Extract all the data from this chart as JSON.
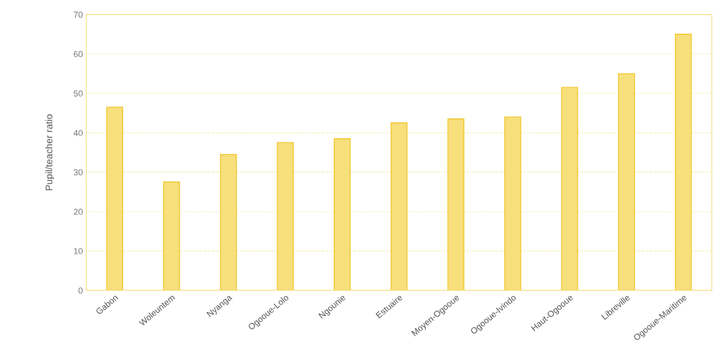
{
  "chart_data": {
    "type": "bar",
    "ylabel": "Pupil/teacher ratio",
    "categories": [
      "Gabon",
      "Woleuntem",
      "Nyanga",
      "Ogooue-Lolo",
      "Ngounie",
      "Estuaire",
      "Moyen-Ogooue",
      "Ogooue-Ivindo",
      "Haut-Ogooue",
      "Libreville",
      "Ogooue-Maritime"
    ],
    "values": [
      46.5,
      27.5,
      34.5,
      37.5,
      38.5,
      42.5,
      43.5,
      44,
      51.5,
      55,
      65
    ],
    "color": "#f7df7c",
    "ylim": [
      0,
      70
    ],
    "yticks": [
      0,
      10,
      20,
      30,
      40,
      50,
      60,
      70
    ],
    "grid": "y"
  }
}
